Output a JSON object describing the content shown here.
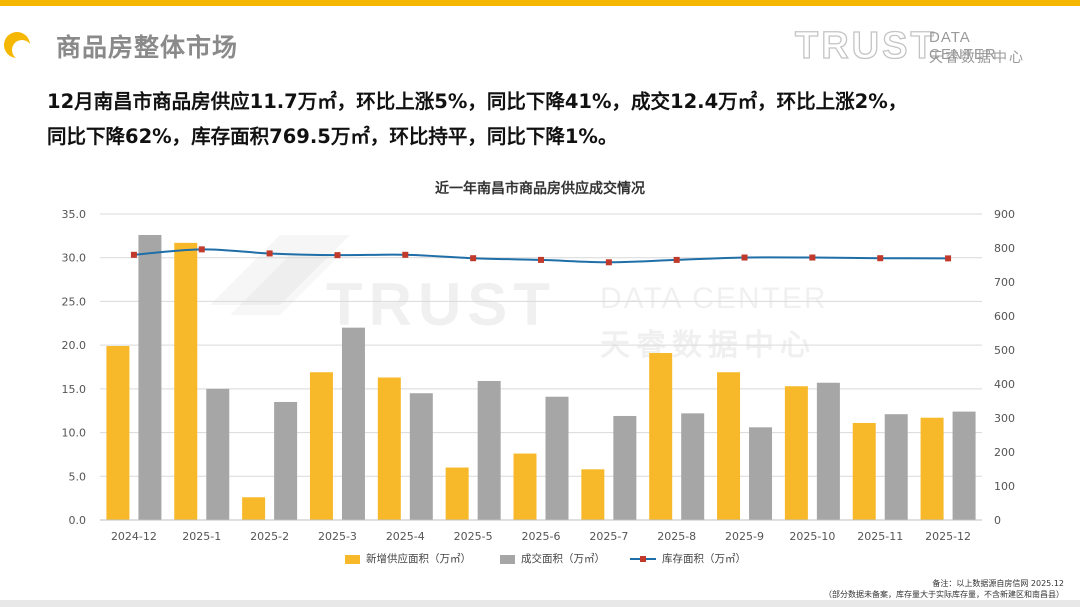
{
  "header": {
    "title": "商品房整体市场",
    "logo_main": "TRUST",
    "logo_sub_en": "DATA CENTER",
    "logo_sub_cn": "天睿数据中心"
  },
  "summary": {
    "line1": "12月南昌市商品房供应11.7万㎡，环比上涨5%，同比下降41%，成交12.4万㎡，环比上涨2%，",
    "line2": "同比下降62%，库存面积769.5万㎡，环比持平，同比下降1%。"
  },
  "watermark": {
    "main": "TRUST",
    "sub_en": "DATA CENTER",
    "sub_cn": "天睿数据中心"
  },
  "footnote": {
    "line1": "备注：以上数据源自房信网  2025.12",
    "line2": "（部分数据未备案，库存量大于实际库存量，不含新建区和南昌县）"
  },
  "colors": {
    "accent": "#f5b700",
    "supply": "#f7b92a",
    "deal": "#a6a6a6",
    "inventory_line": "#1f6ea8",
    "inventory_marker": "#c0392b"
  },
  "chart_data": {
    "type": "bar",
    "title": "近一年南昌市商品房供应成交情况",
    "categories": [
      "2024-12",
      "2025-1",
      "2025-2",
      "2025-3",
      "2025-4",
      "2025-5",
      "2025-6",
      "2025-7",
      "2025-8",
      "2025-9",
      "2025-10",
      "2025-11",
      "2025-12"
    ],
    "series": [
      {
        "name": "新增供应面积（万㎡）",
        "type": "bar",
        "axis": "left",
        "values": [
          19.9,
          31.7,
          2.6,
          16.9,
          16.3,
          6.0,
          7.6,
          5.8,
          19.1,
          16.9,
          15.3,
          11.1,
          11.7
        ]
      },
      {
        "name": "成交面积（万㎡）",
        "type": "bar",
        "axis": "left",
        "values": [
          32.6,
          15.0,
          13.5,
          22.0,
          14.5,
          15.9,
          14.1,
          11.9,
          12.2,
          10.6,
          15.7,
          12.1,
          12.4
        ]
      },
      {
        "name": "库存面积（万㎡）",
        "type": "line",
        "axis": "right",
        "values": [
          780,
          796,
          784,
          779,
          780,
          770,
          765,
          758,
          765,
          772,
          772,
          770,
          769.5
        ]
      }
    ],
    "y_left": {
      "min": 0,
      "max": 35,
      "step": 5,
      "tick_labels": [
        "0.0",
        "5.0",
        "10.0",
        "15.0",
        "20.0",
        "25.0",
        "30.0",
        "35.0"
      ]
    },
    "y_right": {
      "min": 0,
      "max": 900,
      "step": 100,
      "tick_labels": [
        "0",
        "100",
        "200",
        "300",
        "400",
        "500",
        "600",
        "700",
        "800",
        "900"
      ]
    },
    "grid": true,
    "legend": "bottom"
  }
}
